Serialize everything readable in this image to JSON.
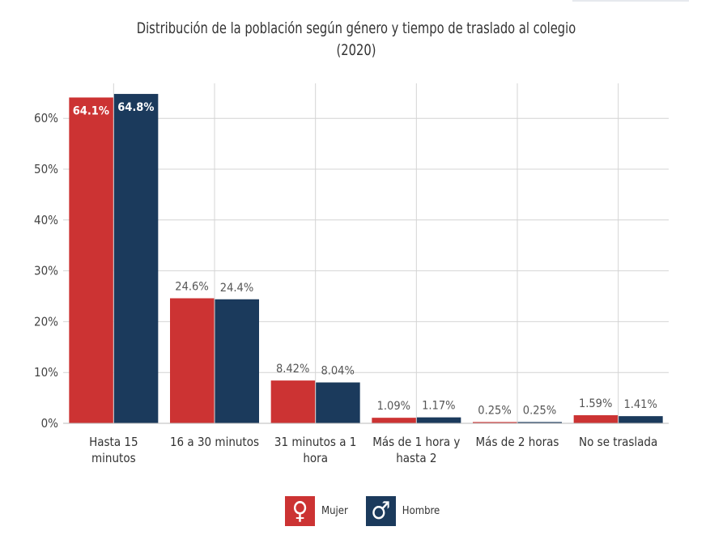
{
  "chart_data": {
    "type": "bar",
    "title": "Distribución de la población según género y tiempo de traslado al colegio",
    "subtitle": "(2020)",
    "categories": [
      [
        "Hasta 15",
        "minutos"
      ],
      [
        "16 a 30 minutos"
      ],
      [
        "31 minutos a 1",
        "hora"
      ],
      [
        "Más de 1 hora y",
        "hasta 2"
      ],
      [
        "Más de 2 horas"
      ],
      [
        "No se traslada"
      ]
    ],
    "series": [
      {
        "name": "Mujer",
        "color": "#cc3333",
        "icon": "female-symbol-icon",
        "values": [
          64.1,
          24.6,
          8.42,
          1.09,
          0.25,
          1.59
        ],
        "labels": [
          "64.1%",
          "24.6%",
          "8.42%",
          "1.09%",
          "0.25%",
          "1.59%"
        ]
      },
      {
        "name": "Hombre",
        "color": "#1b3a5c",
        "icon": "male-symbol-icon",
        "values": [
          64.8,
          24.4,
          8.04,
          1.17,
          0.25,
          1.41
        ],
        "labels": [
          "64.8%",
          "24.4%",
          "8.04%",
          "1.17%",
          "0.25%",
          "1.41%"
        ]
      }
    ],
    "yticks": [
      "0%",
      "10%",
      "20%",
      "30%",
      "40%",
      "50%",
      "60%"
    ],
    "ylim": [
      0,
      65
    ],
    "grid": true,
    "legend": "bottom"
  }
}
